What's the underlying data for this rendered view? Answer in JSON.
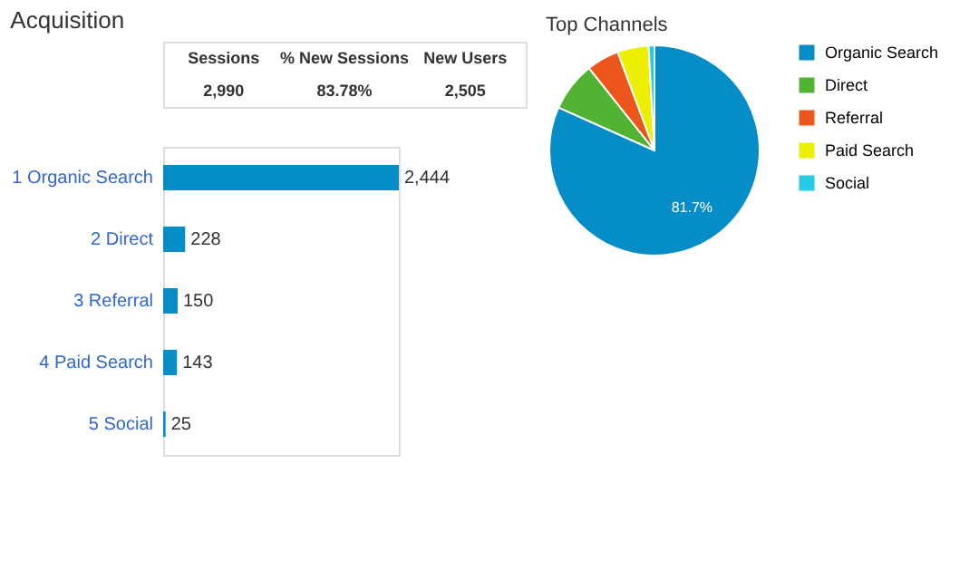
{
  "chart_data": [
    {
      "type": "bar",
      "orientation": "horizontal",
      "title": "Acquisition",
      "categories": [
        "1 Organic Search",
        "2 Direct",
        "3 Referral",
        "4 Paid Search",
        "5 Social"
      ],
      "values": [
        2444,
        228,
        150,
        143,
        25
      ],
      "value_labels": [
        "2,444",
        "228",
        "150",
        "143",
        "25"
      ],
      "color": "#058dc7",
      "annotations": [
        "Sessions",
        "% New Sessions",
        "New Users",
        "2,990",
        "83.78%",
        "2,505"
      ]
    },
    {
      "type": "pie",
      "title": "Top Channels",
      "categories": [
        "Organic Search",
        "Direct",
        "Referral",
        "Paid Search",
        "Social"
      ],
      "values": [
        81.7,
        7.6,
        5.0,
        4.8,
        0.9
      ],
      "value_labels": [
        "81.7%",
        null,
        null,
        null,
        null
      ],
      "colors": [
        "#058dc7",
        "#50b432",
        "#ed561b",
        "#edef00",
        "#24cbe5"
      ],
      "legend": "right"
    }
  ]
}
